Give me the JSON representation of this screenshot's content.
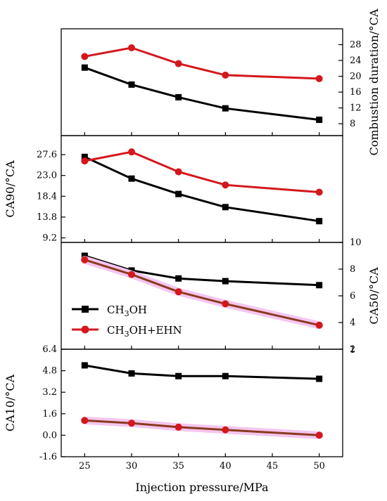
{
  "chart_data": [
    {
      "type": "line",
      "ylabel": "Combustion duration/°CA",
      "y_axis_side": "right",
      "ylim": [
        5,
        32
      ],
      "yticks": [
        8,
        12,
        16,
        20,
        24,
        28
      ],
      "ytick_labels": [
        "8",
        "12",
        "16",
        "20",
        "24",
        "28"
      ],
      "x": [
        25,
        30,
        35,
        40,
        50
      ],
      "series": [
        {
          "name": "CH3OH",
          "values": [
            22.2,
            17.9,
            14.7,
            11.9,
            9.0
          ]
        },
        {
          "name": "CH3OH+EHN",
          "values": [
            25.0,
            27.2,
            23.2,
            20.3,
            19.4
          ]
        }
      ]
    },
    {
      "type": "line",
      "ylabel": "CA90/°CA",
      "y_axis_side": "left",
      "ylim": [
        8.2,
        31.8
      ],
      "yticks": [
        9.2,
        13.8,
        18.4,
        23.0,
        27.6
      ],
      "ytick_labels": [
        "9.2",
        "13.8",
        "18.4",
        "23.0",
        "27.6"
      ],
      "x": [
        25,
        30,
        35,
        40,
        50
      ],
      "series": [
        {
          "name": "CH3OH",
          "values": [
            27.1,
            22.3,
            18.9,
            16.0,
            12.9
          ]
        },
        {
          "name": "CH3OH+EHN",
          "values": [
            26.2,
            28.2,
            23.8,
            20.9,
            19.3
          ]
        }
      ]
    },
    {
      "type": "line",
      "ylabel": "CA50/°CA",
      "y_axis_side": "right",
      "ylim": [
        2,
        10
      ],
      "yticks": [
        2,
        4,
        6,
        8,
        10
      ],
      "ytick_labels": [
        "2",
        "4",
        "6",
        "8",
        "10"
      ],
      "x": [
        25,
        30,
        35,
        40,
        50
      ],
      "series": [
        {
          "name": "CH3OH",
          "values": [
            9.0,
            7.9,
            7.3,
            7.1,
            6.8
          ]
        },
        {
          "name": "CH3OH+EHN",
          "values": [
            8.7,
            7.6,
            6.3,
            5.4,
            3.8
          ]
        }
      ]
    },
    {
      "type": "line",
      "ylabel": "CA10/°CA",
      "y_axis_side": "left",
      "ylim": [
        -1.6,
        6.4
      ],
      "yticks": [
        -1.6,
        0.0,
        1.6,
        3.2,
        4.8,
        6.4
      ],
      "ytick_labels": [
        "-1.6",
        "0.0",
        "1.6",
        "3.2",
        "4.8",
        "6.4"
      ],
      "right_ytick_labels": [
        "1"
      ],
      "x": [
        25,
        30,
        35,
        40,
        50
      ],
      "series": [
        {
          "name": "CH3OH",
          "values": [
            5.2,
            4.6,
            4.4,
            4.4,
            4.2
          ]
        },
        {
          "name": "CH3OH+EHN",
          "values": [
            1.1,
            0.9,
            0.6,
            0.4,
            0.0
          ]
        }
      ]
    }
  ],
  "shared_x_axis": {
    "label": "Injection pressure/MPa",
    "xlim": [
      22.5,
      52.5
    ],
    "ticks": [
      25,
      30,
      35,
      40,
      45,
      50
    ],
    "tick_labels": [
      "25",
      "30",
      "35",
      "40",
      "45",
      "50"
    ]
  },
  "legend": {
    "placement": "inside third panel, lower-left",
    "entries": [
      {
        "label_main": "CH",
        "label_sub": "3",
        "label_rest": "OH",
        "color": "#000000",
        "marker": "square"
      },
      {
        "label_main": "CH",
        "label_sub": "3",
        "label_rest": "OH+EHN",
        "color": "#d4171c",
        "marker": "circle"
      }
    ]
  },
  "colors": {
    "ch3oh": "#000000",
    "ehn": "#d4171c",
    "ehn_lower_line": "#8b3a1e",
    "highlight": "#f4c6ef"
  }
}
